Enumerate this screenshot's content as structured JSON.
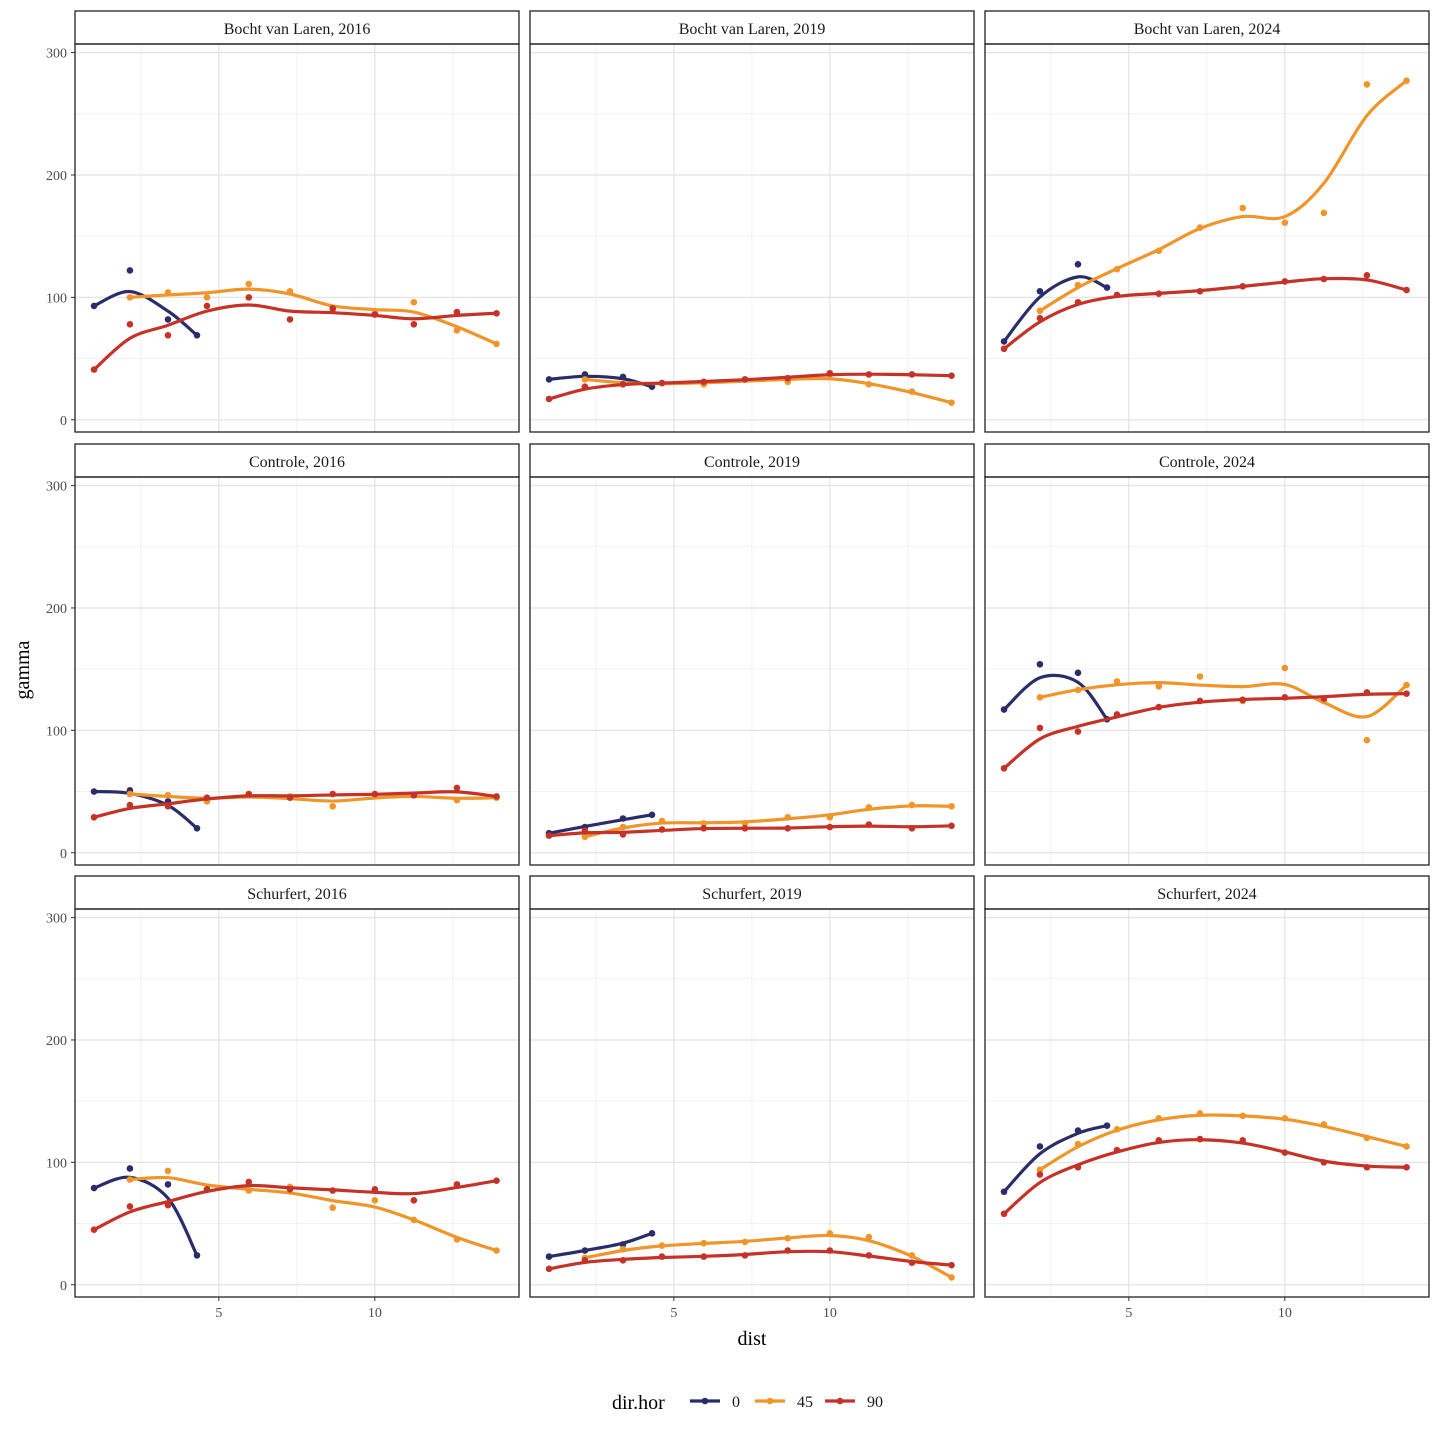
{
  "chart_data": {
    "type": "line",
    "xlabel": "dist",
    "ylabel": "gamma",
    "xlim": [
      0.39,
      14.62
    ],
    "ylim": [
      -10,
      307
    ],
    "x_ticks": [
      5,
      10
    ],
    "y_ticks": [
      0,
      100,
      200,
      300
    ],
    "grid": true,
    "legend": {
      "title": "dir.hor",
      "placement": "bottom",
      "entries": [
        "0",
        "45",
        "90"
      ]
    },
    "colors": {
      "0": "#2b2d6b",
      "45": "#f0952a",
      "90": "#c53228"
    },
    "x_dir0": [
      1.0,
      2.15,
      3.37,
      4.3
    ],
    "x_lags": [
      1.0,
      2.15,
      3.37,
      4.62,
      5.96,
      7.28,
      8.65,
      10.0,
      11.25,
      12.63,
      13.9
    ],
    "x_dir45": [
      2.15,
      3.37,
      4.62,
      5.96,
      7.28,
      8.65,
      10.0,
      11.25,
      12.63,
      13.9
    ],
    "panels": [
      {
        "title": "Bocht van Laren, 2016",
        "series": [
          {
            "name": "0",
            "values": [
              93,
              122,
              82,
              69
            ]
          },
          {
            "name": "45",
            "values": [
              100,
              104,
              100,
              111,
              105,
              90,
              87,
              96,
              73,
              62
            ]
          },
          {
            "name": "90",
            "values": [
              41,
              78,
              69,
              93,
              100,
              82,
              91,
              86,
              78,
              88,
              87
            ]
          }
        ]
      },
      {
        "title": "Bocht van Laren, 2019",
        "series": [
          {
            "name": "0",
            "values": [
              33,
              37,
              35,
              27
            ]
          },
          {
            "name": "45",
            "values": [
              33,
              29,
              30,
              29,
              33,
              31,
              37,
              29,
              23,
              14
            ]
          },
          {
            "name": "90",
            "values": [
              17,
              27,
              29,
              30,
              31,
              33,
              34,
              38,
              37,
              37,
              36
            ]
          }
        ]
      },
      {
        "title": "Bocht van Laren, 2024",
        "series": [
          {
            "name": "0",
            "values": [
              64,
              105,
              127,
              108
            ]
          },
          {
            "name": "45",
            "values": [
              89,
              110,
              123,
              138,
              157,
              173,
              161,
              169,
              274,
              277
            ]
          },
          {
            "name": "90",
            "values": [
              58,
              83,
              96,
              102,
              103,
              105,
              109,
              113,
              115,
              118,
              106
            ]
          }
        ]
      },
      {
        "title": "Controle, 2016",
        "series": [
          {
            "name": "0",
            "values": [
              50,
              51,
              42,
              20
            ]
          },
          {
            "name": "45",
            "values": [
              48,
              47,
              42,
              47,
              46,
              38,
              47,
              47,
              43,
              45
            ]
          },
          {
            "name": "90",
            "values": [
              29,
              39,
              38,
              45,
              48,
              45,
              48,
              48,
              47,
              53,
              46
            ]
          }
        ]
      },
      {
        "title": "Controle, 2019",
        "series": [
          {
            "name": "0",
            "values": [
              16,
              21,
              28,
              31
            ]
          },
          {
            "name": "45",
            "values": [
              13,
              21,
              26,
              24,
              24,
              29,
              29,
              37,
              39,
              38
            ]
          },
          {
            "name": "90",
            "values": [
              14,
              18,
              15,
              19,
              20,
              20,
              20,
              21,
              23,
              20,
              22
            ]
          }
        ]
      },
      {
        "title": "Controle, 2024",
        "series": [
          {
            "name": "0",
            "values": [
              117,
              154,
              147,
              109
            ]
          },
          {
            "name": "45",
            "values": [
              127,
              133,
              140,
              136,
              144,
              124,
              151,
              124,
              92,
              137
            ]
          },
          {
            "name": "90",
            "values": [
              69,
              102,
              99,
              113,
              119,
              124,
              125,
              127,
              126,
              131,
              130
            ]
          }
        ]
      },
      {
        "title": "Schurfert, 2016",
        "series": [
          {
            "name": "0",
            "values": [
              79,
              95,
              82,
              24
            ]
          },
          {
            "name": "45",
            "values": [
              86,
              93,
              78,
              77,
              80,
              63,
              69,
              53,
              37,
              28
            ]
          },
          {
            "name": "90",
            "values": [
              45,
              64,
              65,
              78,
              84,
              78,
              77,
              78,
              69,
              82,
              85
            ]
          }
        ]
      },
      {
        "title": "Schurfert, 2019",
        "series": [
          {
            "name": "0",
            "values": [
              23,
              28,
              33,
              42
            ]
          },
          {
            "name": "45",
            "values": [
              22,
              29,
              32,
              34,
              35,
              38,
              42,
              39,
              24,
              6
            ]
          },
          {
            "name": "90",
            "values": [
              13,
              20,
              20,
              23,
              23,
              24,
              28,
              28,
              24,
              18,
              16
            ]
          }
        ]
      },
      {
        "title": "Schurfert, 2024",
        "series": [
          {
            "name": "0",
            "values": [
              76,
              113,
              126,
              130
            ]
          },
          {
            "name": "45",
            "values": [
              94,
              115,
              127,
              136,
              140,
              138,
              136,
              131,
              120,
              113
            ]
          },
          {
            "name": "90",
            "values": [
              58,
              90,
              96,
              110,
              118,
              119,
              118,
              108,
              100,
              96,
              96
            ]
          }
        ]
      }
    ]
  }
}
